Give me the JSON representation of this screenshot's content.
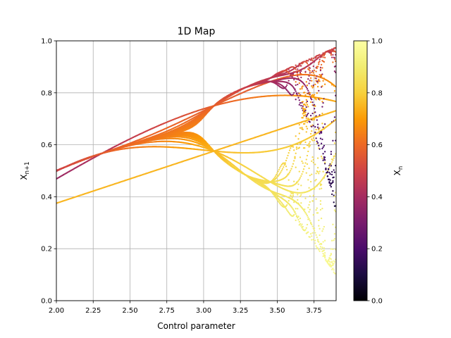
{
  "chart_data": {
    "type": "scatter",
    "title": "1D Map",
    "xlabel": "Control parameter",
    "ylabel_main": "X",
    "ylabel_sub": "n+1",
    "xlim": [
      2.0,
      3.9
    ],
    "ylim": [
      0.0,
      1.0
    ],
    "xticks": [
      "2.00",
      "2.25",
      "2.50",
      "2.75",
      "3.00",
      "3.25",
      "3.50",
      "3.75"
    ],
    "xtick_values": [
      2.0,
      2.25,
      2.5,
      2.75,
      3.0,
      3.25,
      3.5,
      3.75
    ],
    "yticks": [
      "0.0",
      "0.2",
      "0.4",
      "0.6",
      "0.8",
      "1.0"
    ],
    "ytick_values": [
      0.0,
      0.2,
      0.4,
      0.6,
      0.8,
      1.0
    ],
    "grid": true,
    "map": "logistic x(n+1) = r x(n) (1 - x(n)), plotted (r, x(n+1)) colored by x(n)",
    "colorbar": {
      "label_main": "X",
      "label_sub": "n",
      "colormap": "inferno",
      "range": [
        0.0,
        1.0
      ],
      "ticks": [
        "0.0",
        "0.2",
        "0.4",
        "0.6",
        "0.8",
        "1.0"
      ],
      "tick_values": [
        0.0,
        0.2,
        0.4,
        0.6,
        0.8,
        1.0
      ]
    }
  }
}
